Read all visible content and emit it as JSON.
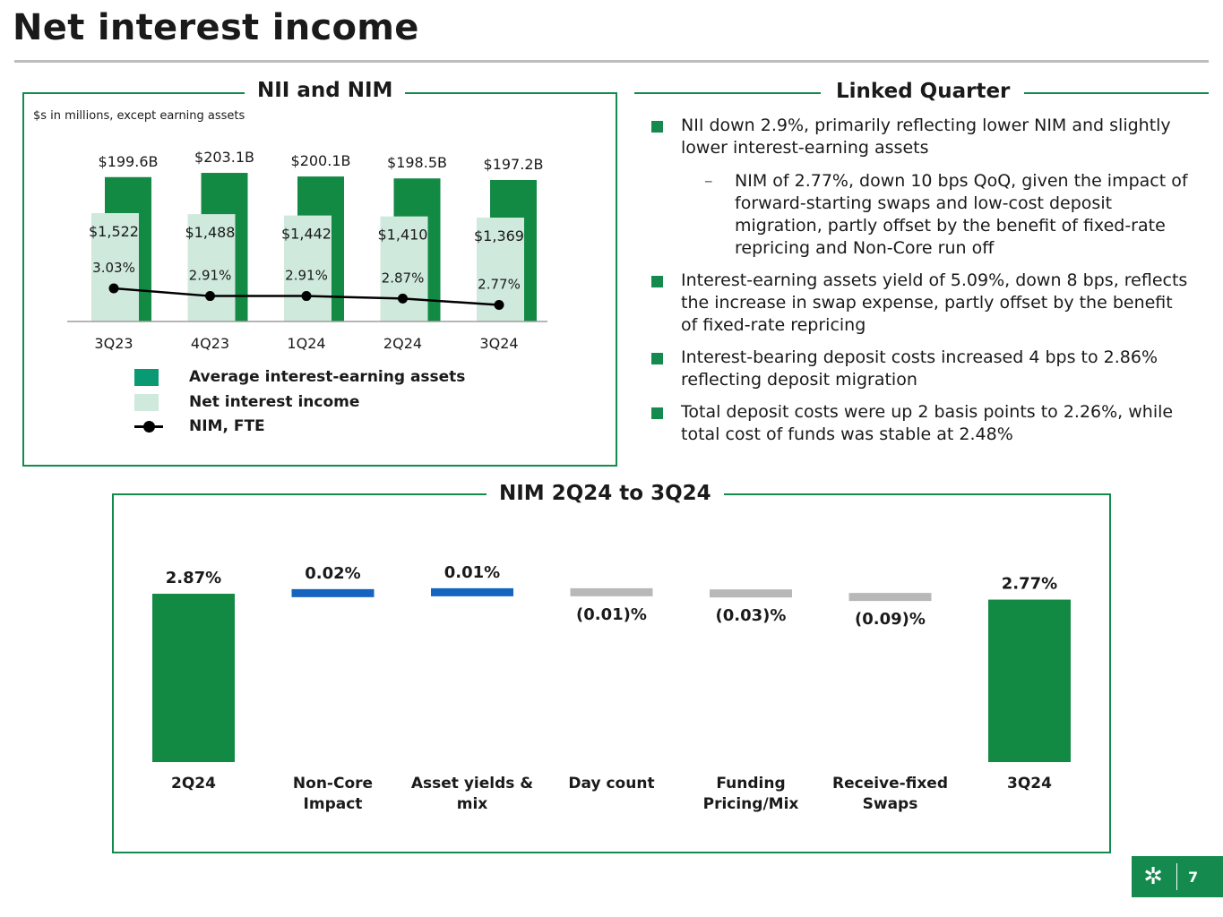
{
  "page": {
    "title": "Net interest income",
    "page_number": "7"
  },
  "nii_panel": {
    "title": "NII and NIM",
    "note": "$s in millions, except earning assets",
    "legend": [
      {
        "label": "Average interest-earning assets",
        "color": "#0a9a73",
        "kind": "swatch"
      },
      {
        "label": "Net interest income",
        "color": "#cfe9dd",
        "kind": "swatch"
      },
      {
        "label": "NIM, FTE",
        "color": "#000000",
        "kind": "line"
      }
    ]
  },
  "linked_quarter": {
    "title": "Linked Quarter",
    "items": [
      {
        "text": "NII down 2.9%, primarily reflecting lower NIM and slightly lower interest-earning assets",
        "sub": "NIM of 2.77%, down 10 bps QoQ, given the impact of forward-starting swaps and low-cost deposit migration, partly offset by the benefit of fixed-rate repricing and Non-Core run off"
      },
      {
        "text": "Interest-earning assets yield of 5.09%, down 8 bps, reflects the increase in swap expense, partly offset by the benefit of fixed-rate repricing"
      },
      {
        "text": "Interest-bearing deposit costs increased 4 bps to 2.86% reflecting deposit migration"
      },
      {
        "text": "Total deposit costs were up 2 basis points to 2.26%, while total cost of funds was stable at 2.48%"
      }
    ]
  },
  "bridge_panel": {
    "title": "NIM 2Q24 to 3Q24"
  },
  "colors": {
    "green": "#148a4e",
    "dark_green": "#138a44",
    "light_green": "#cfe9dd",
    "blue": "#1565c0",
    "gray": "#b8b8b8"
  },
  "chart_data": [
    {
      "type": "bar",
      "title": "NII and NIM",
      "categories": [
        "3Q23",
        "4Q23",
        "1Q24",
        "2Q24",
        "3Q24"
      ],
      "series": [
        {
          "name": "Average interest-earning assets",
          "values": [
            199.6,
            203.1,
            200.1,
            198.5,
            197.2
          ],
          "labels": [
            "$199.6B",
            "$203.1B",
            "$200.1B",
            "$198.5B",
            "$197.2B"
          ]
        },
        {
          "name": "Net interest income",
          "values": [
            1522,
            1488,
            1442,
            1410,
            1369
          ],
          "labels": [
            "$1,522",
            "$1,488",
            "$1,442",
            "$1,410",
            "$1,369"
          ]
        },
        {
          "name": "NIM, FTE",
          "type": "line",
          "values": [
            3.03,
            2.91,
            2.91,
            2.87,
            2.77
          ],
          "labels": [
            "3.03%",
            "2.91%",
            "2.91%",
            "2.87%",
            "2.77%"
          ]
        }
      ]
    },
    {
      "type": "waterfall",
      "title": "NIM 2Q24 to 3Q24",
      "categories": [
        "2Q24",
        "Non-Core Impact",
        "Asset yields & mix",
        "Day count",
        "Funding Pricing/Mix",
        "Receive-fixed Swaps",
        "3Q24"
      ],
      "category_lines": [
        [
          "2Q24"
        ],
        [
          "Non-Core",
          "Impact"
        ],
        [
          "Asset yields &",
          "mix"
        ],
        [
          "Day count"
        ],
        [
          "Funding",
          "Pricing/Mix"
        ],
        [
          "Receive-fixed",
          "Swaps"
        ],
        [
          "3Q24"
        ]
      ],
      "values": [
        2.87,
        0.02,
        0.01,
        -0.01,
        -0.03,
        -0.09,
        2.77
      ],
      "kinds": [
        "total",
        "increase",
        "increase",
        "decrease",
        "decrease",
        "decrease",
        "total"
      ],
      "labels": [
        "2.87%",
        "0.02%",
        "0.01%",
        "(0.01)%",
        "(0.03)%",
        "(0.09)%",
        "2.77%"
      ]
    }
  ]
}
